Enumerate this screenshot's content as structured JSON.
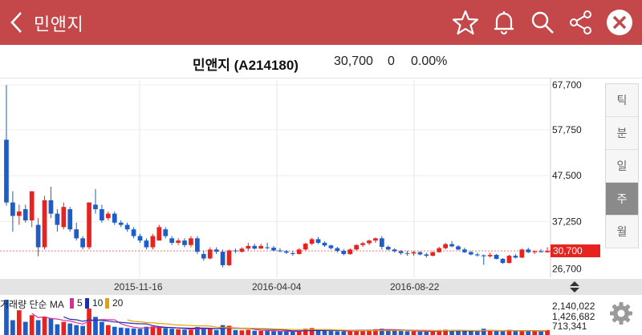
{
  "header": {
    "title": "민앤지",
    "back_icon": "chevron-left-icon",
    "icons": [
      "star-icon",
      "bell-icon",
      "search-icon",
      "share-icon",
      "close-circle-icon"
    ]
  },
  "info": {
    "name": "민앤지 (A214180)",
    "price": "30,700",
    "change": "0",
    "change_pct": "0.00%"
  },
  "period_tabs": {
    "items": [
      "틱",
      "분",
      "일",
      "주",
      "월"
    ],
    "selected": "주"
  },
  "colors": {
    "up": "#e8231f",
    "down": "#1e5cc8",
    "header_bg": "#c4474a",
    "ma5": "#e2289b",
    "ma10": "#1d2fa8",
    "ma20": "#e3a200"
  },
  "price_axis": {
    "labels": [
      "67,700",
      "57,750",
      "47,500",
      "37,250",
      "26,700"
    ],
    "current": "30,700"
  },
  "date_axis": {
    "labels": [
      "2015-11-16",
      "2016-04-04",
      "2016-08-22"
    ]
  },
  "volume_legend": {
    "title": "거래량 단순 MA",
    "ma": [
      "5",
      "10",
      "20"
    ]
  },
  "volume_axis": {
    "labels": [
      "2,140,022",
      "1,426,682",
      "713,341"
    ]
  },
  "chart_data": {
    "type": "candlestick",
    "y_range": [
      24800,
      68800
    ],
    "candles": [
      [
        55500,
        67700,
        40800,
        41500
      ],
      [
        41500,
        44000,
        35000,
        38500
      ],
      [
        38500,
        41000,
        36500,
        39500
      ],
      [
        40000,
        41000,
        37000,
        37500
      ],
      [
        37500,
        44000,
        36000,
        44000
      ],
      [
        36500,
        38000,
        29500,
        31500
      ],
      [
        31500,
        43000,
        31000,
        42000
      ],
      [
        42000,
        45000,
        38000,
        39000
      ],
      [
        39000,
        40000,
        35000,
        36500
      ],
      [
        36000,
        41500,
        35500,
        40500
      ],
      [
        40000,
        40500,
        35000,
        35500
      ],
      [
        35500,
        37000,
        33000,
        33500
      ],
      [
        33500,
        34000,
        31000,
        31500
      ],
      [
        31500,
        41500,
        31000,
        41500
      ],
      [
        41000,
        44500,
        39000,
        40000
      ],
      [
        40000,
        41000,
        37000,
        37500
      ],
      [
        38000,
        39500,
        37500,
        39000
      ],
      [
        39000,
        39500,
        36500,
        37000
      ],
      [
        37000,
        37500,
        36000,
        36500
      ],
      [
        36500,
        37000,
        35000,
        35500
      ],
      [
        35500,
        36000,
        33500,
        34000
      ],
      [
        34000,
        34500,
        32500,
        33000
      ],
      [
        33000,
        33500,
        31000,
        31500
      ],
      [
        31500,
        34500,
        31000,
        34000
      ],
      [
        33000,
        36500,
        33000,
        36000
      ],
      [
        35500,
        36000,
        33500,
        34000
      ],
      [
        33500,
        34000,
        32000,
        32500
      ],
      [
        32500,
        33500,
        32000,
        33000
      ],
      [
        33000,
        33500,
        31500,
        32000
      ],
      [
        32000,
        34000,
        31500,
        33500
      ],
      [
        33500,
        34000,
        30000,
        30500
      ],
      [
        30000,
        30800,
        28500,
        29000
      ],
      [
        29000,
        31500,
        28800,
        31000
      ],
      [
        31000,
        31500,
        30000,
        30500
      ],
      [
        30500,
        31000,
        27000,
        27500
      ],
      [
        27500,
        31000,
        27300,
        30800
      ],
      [
        30800,
        31200,
        30200,
        30600
      ],
      [
        30500,
        31500,
        30300,
        31200
      ],
      [
        31200,
        32500,
        30800,
        31800
      ],
      [
        31800,
        32300,
        31000,
        31200
      ],
      [
        31200,
        32300,
        31200,
        31800
      ],
      [
        31500,
        32500,
        31000,
        31400
      ],
      [
        31400,
        31800,
        30600,
        30800
      ],
      [
        30800,
        31300,
        30400,
        30600
      ],
      [
        30600,
        30900,
        30000,
        30300
      ],
      [
        30200,
        30600,
        29600,
        30000
      ],
      [
        30000,
        31300,
        29900,
        31000
      ],
      [
        31000,
        32500,
        30800,
        32300
      ],
      [
        32300,
        33600,
        32000,
        33300
      ],
      [
        33300,
        33800,
        32200,
        32500
      ],
      [
        32500,
        32800,
        31600,
        31900
      ],
      [
        31900,
        32100,
        31000,
        31300
      ],
      [
        31300,
        31600,
        30300,
        30700
      ],
      [
        30700,
        31100,
        29700,
        30000
      ],
      [
        30000,
        31300,
        29800,
        31000
      ],
      [
        31000,
        32200,
        30800,
        32000
      ],
      [
        32000,
        32700,
        31600,
        32400
      ],
      [
        32400,
        33200,
        32000,
        33000
      ],
      [
        33000,
        33700,
        32500,
        33500
      ],
      [
        33500,
        34000,
        31000,
        31600
      ],
      [
        31600,
        31900,
        30800,
        31000
      ],
      [
        31000,
        31300,
        30300,
        30600
      ],
      [
        30600,
        30900,
        29800,
        30200
      ],
      [
        30200,
        30700,
        29600,
        30100
      ],
      [
        30100,
        30700,
        29600,
        30400
      ],
      [
        30400,
        30600,
        29700,
        29900
      ],
      [
        29900,
        30300,
        29200,
        29600
      ],
      [
        29600,
        30600,
        29500,
        30400
      ],
      [
        30400,
        31600,
        30300,
        31300
      ],
      [
        31300,
        32500,
        31000,
        32200
      ],
      [
        32200,
        32900,
        31500,
        31700
      ],
      [
        31700,
        32000,
        30800,
        31000
      ],
      [
        31000,
        31400,
        30200,
        30400
      ],
      [
        30400,
        30700,
        29700,
        29900
      ],
      [
        29900,
        30300,
        29400,
        29700
      ],
      [
        29700,
        29900,
        27600,
        29500
      ],
      [
        29500,
        30300,
        29200,
        29800
      ],
      [
        29800,
        30000,
        28800,
        28900
      ],
      [
        28900,
        29100,
        27800,
        28000
      ],
      [
        28000,
        29800,
        27900,
        29600
      ],
      [
        29600,
        30000,
        29000,
        29200
      ],
      [
        29200,
        31200,
        29100,
        31000
      ],
      [
        31000,
        31400,
        30200,
        30400
      ],
      [
        30400,
        30800,
        30000,
        30600
      ],
      [
        30600,
        31100,
        30300,
        30500
      ],
      [
        30400,
        31500,
        30300,
        30700
      ]
    ],
    "volume": [
      2140000,
      900000,
      1500000,
      800000,
      1200000,
      900000,
      1100000,
      1000000,
      650000,
      800000,
      700000,
      600000,
      550000,
      1600000,
      1100000,
      800000,
      600000,
      500000,
      450000,
      420000,
      400000,
      380000,
      500000,
      520000,
      480000,
      420000,
      380000,
      350000,
      330000,
      320000,
      480000,
      420000,
      380000,
      300000,
      600000,
      560000,
      300000,
      280000,
      320000,
      260000,
      250000,
      240000,
      230000,
      220000,
      210000,
      200000,
      260000,
      380000,
      420000,
      300000,
      260000,
      240000,
      230000,
      220000,
      250000,
      280000,
      300000,
      320000,
      350000,
      380000,
      300000,
      260000,
      240000,
      230000,
      220000,
      210000,
      200000,
      260000,
      300000,
      320000,
      280000,
      250000,
      230000,
      220000,
      210000,
      380000,
      260000,
      240000,
      220000,
      300000,
      260000,
      240000,
      230000,
      220000,
      210000,
      300000
    ]
  }
}
